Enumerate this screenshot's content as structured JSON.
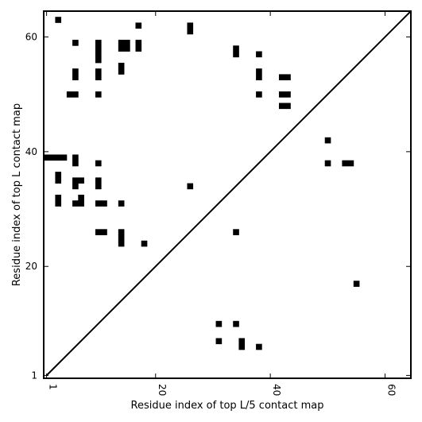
{
  "chart_data": {
    "type": "heatmap",
    "xlabel": "Residue index of top L/5 contact map",
    "ylabel": "Residue index of top L contact map",
    "xlim": [
      0.5,
      64.5
    ],
    "ylim": [
      0.5,
      64.5
    ],
    "ticks": [
      1,
      20,
      40,
      60
    ],
    "colors": {
      "contact": "#000000",
      "frame": "#000000",
      "background": "#ffffff"
    },
    "diagonal": true,
    "upper_contacts": [
      [
        3,
        63
      ],
      [
        17,
        62
      ],
      [
        26,
        61
      ],
      [
        26,
        62
      ],
      [
        6,
        59
      ],
      [
        10,
        59
      ],
      [
        14,
        59
      ],
      [
        15,
        59
      ],
      [
        17,
        59
      ],
      [
        10,
        58
      ],
      [
        14,
        58
      ],
      [
        15,
        58
      ],
      [
        17,
        58
      ],
      [
        34,
        58
      ],
      [
        10,
        57
      ],
      [
        34,
        57
      ],
      [
        38,
        57
      ],
      [
        10,
        56
      ],
      [
        14,
        55
      ],
      [
        14,
        54
      ],
      [
        6,
        54
      ],
      [
        10,
        54
      ],
      [
        38,
        54
      ],
      [
        6,
        53
      ],
      [
        10,
        53
      ],
      [
        38,
        53
      ],
      [
        42,
        53
      ],
      [
        43,
        53
      ],
      [
        5,
        50
      ],
      [
        6,
        50
      ],
      [
        10,
        50
      ],
      [
        38,
        50
      ],
      [
        42,
        50
      ],
      [
        43,
        50
      ],
      [
        42,
        48
      ],
      [
        43,
        48
      ],
      [
        50,
        42
      ],
      [
        1,
        39
      ],
      [
        2,
        39
      ],
      [
        3,
        39
      ],
      [
        4,
        39
      ],
      [
        6,
        39
      ],
      [
        6,
        38
      ],
      [
        10,
        38
      ],
      [
        50,
        38
      ],
      [
        53,
        38
      ],
      [
        54,
        38
      ],
      [
        3,
        36
      ],
      [
        3,
        35
      ],
      [
        6,
        35
      ],
      [
        7,
        35
      ],
      [
        10,
        35
      ],
      [
        6,
        34
      ],
      [
        10,
        34
      ],
      [
        26,
        34
      ],
      [
        3,
        32
      ],
      [
        7,
        32
      ],
      [
        3,
        31
      ],
      [
        6,
        31
      ],
      [
        7,
        31
      ],
      [
        10,
        31
      ],
      [
        11,
        31
      ],
      [
        14,
        31
      ],
      [
        34,
        26
      ],
      [
        10,
        26
      ],
      [
        11,
        26
      ],
      [
        14,
        26
      ],
      [
        14,
        25
      ],
      [
        14,
        24
      ],
      [
        18,
        24
      ]
    ],
    "lower_contacts": [
      [
        55,
        17
      ],
      [
        31,
        10
      ],
      [
        34,
        10
      ],
      [
        31,
        7
      ],
      [
        35,
        7
      ],
      [
        35,
        6
      ],
      [
        38,
        6
      ]
    ]
  }
}
